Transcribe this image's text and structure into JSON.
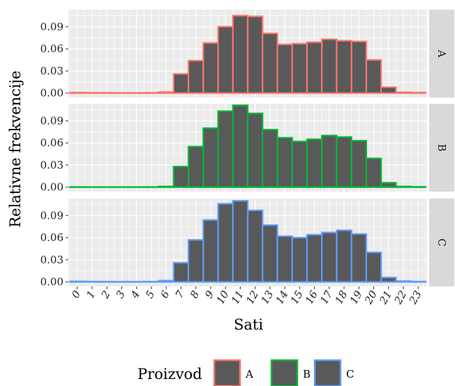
{
  "chart_data": {
    "type": "bar",
    "xlabel": "Sati",
    "ylabel": "Relativne frekvencije",
    "categories": [
      "0",
      "1",
      "2",
      "3",
      "4",
      "5",
      "6",
      "7",
      "8",
      "9",
      "10",
      "11",
      "12",
      "13",
      "14",
      "15",
      "16",
      "17",
      "18",
      "19",
      "20",
      "21",
      "22",
      "23"
    ],
    "ylim": [
      -0.006,
      0.113
    ],
    "yticks": [
      0.0,
      0.03,
      0.06,
      0.09
    ],
    "ytick_labels": [
      "0.00",
      "0.03",
      "0.06",
      "0.09"
    ],
    "grid": true,
    "legend": {
      "title": "Proizvod",
      "position": "bottom"
    },
    "bar_fill": "#595959",
    "panel_background": "#ebebeb",
    "strip_background": "#d9d9d9",
    "series": [
      {
        "name": "A",
        "color": "#f8766d",
        "values": [
          0.0008,
          0.0006,
          0.0005,
          0.0004,
          0.0004,
          0.0005,
          0.0015,
          0.026,
          0.044,
          0.068,
          0.09,
          0.105,
          0.104,
          0.081,
          0.066,
          0.067,
          0.069,
          0.073,
          0.071,
          0.07,
          0.045,
          0.008,
          0.0012,
          0.0008
        ]
      },
      {
        "name": "B",
        "color": "#00ba38",
        "values": [
          0.0003,
          0.0002,
          0.0002,
          0.0002,
          0.0002,
          0.0003,
          0.001,
          0.028,
          0.055,
          0.08,
          0.103,
          0.111,
          0.1,
          0.078,
          0.067,
          0.062,
          0.065,
          0.07,
          0.068,
          0.063,
          0.039,
          0.006,
          0.001,
          0.0005
        ]
      },
      {
        "name": "C",
        "color": "#619cff",
        "values": [
          0.0008,
          0.0006,
          0.0005,
          0.0004,
          0.0004,
          0.0005,
          0.0018,
          0.026,
          0.057,
          0.084,
          0.106,
          0.11,
          0.097,
          0.077,
          0.062,
          0.06,
          0.064,
          0.067,
          0.07,
          0.065,
          0.04,
          0.006,
          0.0012,
          0.0006
        ]
      }
    ]
  }
}
